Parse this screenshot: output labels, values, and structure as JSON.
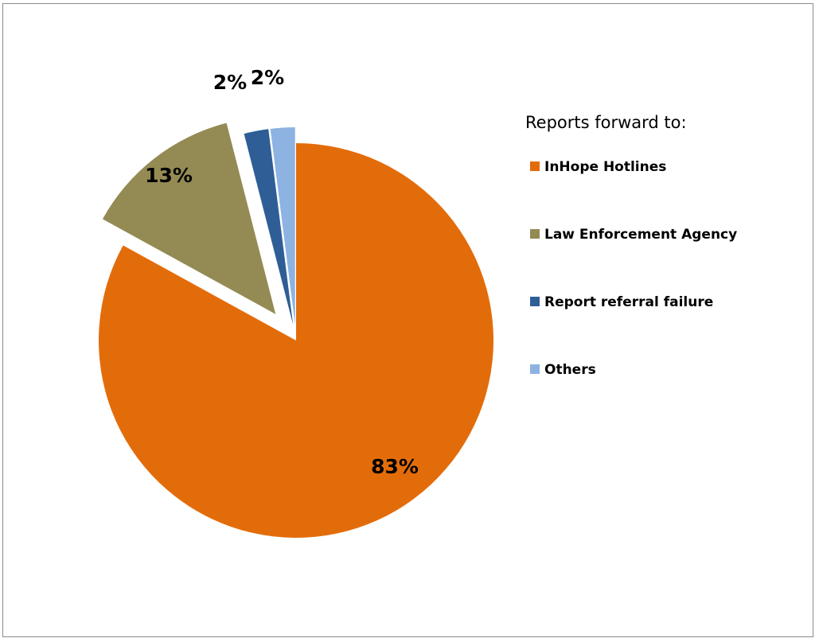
{
  "chart_data": {
    "type": "pie",
    "legend_title": "Reports forward to:",
    "legend_position": "right",
    "start_angle_deg": 0,
    "direction": "clockwise",
    "exploded": true,
    "slices": [
      {
        "name": "InHope Hotlines",
        "value": 83,
        "label": "83%",
        "color": "#e36c0a"
      },
      {
        "name": "Law Enforcement Agency",
        "value": 13,
        "label": "13%",
        "color": "#948a54"
      },
      {
        "name": "Report referral failure",
        "value": 2,
        "label": "2%",
        "color": "#2e5e95"
      },
      {
        "name": "Others",
        "value": 2,
        "label": "2%",
        "color": "#8db3e2"
      }
    ]
  }
}
